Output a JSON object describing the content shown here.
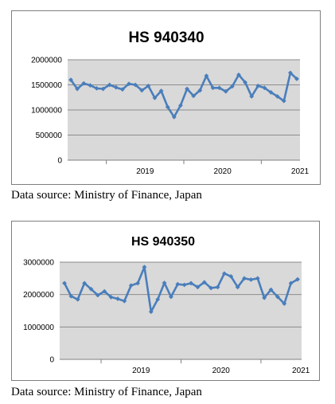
{
  "chart_data": [
    {
      "type": "line",
      "title": "HS 940340",
      "xlabel": "",
      "ylabel": "",
      "ylim": [
        0,
        2000000
      ],
      "yticks": [
        "2000000",
        "1500000",
        "1000000",
        "500000",
        "0"
      ],
      "xticks": [
        "2019",
        "2020",
        "2021"
      ],
      "grid": true,
      "line_color": "#4a7ebb",
      "plot_background": "#d9d9d9",
      "x_start": "2018-07",
      "x_end": "2021-12",
      "series": [
        {
          "values": [
            1600000,
            1420000,
            1530000,
            1490000,
            1430000,
            1420000,
            1500000,
            1450000,
            1410000,
            1520000,
            1500000,
            1390000,
            1480000,
            1240000,
            1380000,
            1060000,
            860000,
            1090000,
            1420000,
            1280000,
            1390000,
            1680000,
            1440000,
            1440000,
            1370000,
            1470000,
            1700000,
            1550000,
            1270000,
            1480000,
            1440000,
            1350000,
            1270000,
            1180000,
            1740000,
            1620000
          ]
        }
      ]
    },
    {
      "type": "line",
      "title": "HS 940350",
      "xlabel": "",
      "ylabel": "",
      "ylim": [
        0,
        3000000
      ],
      "yticks": [
        "3000000",
        "2000000",
        "1000000",
        "0"
      ],
      "xticks": [
        "2019",
        "2020",
        "2021"
      ],
      "grid": true,
      "line_color": "#4a7ebb",
      "plot_background": "#d9d9d9",
      "x_start": "2018-07",
      "x_end": "2021-12",
      "series": [
        {
          "values": [
            2350000,
            1950000,
            1850000,
            2350000,
            2170000,
            1980000,
            2100000,
            1920000,
            1870000,
            1800000,
            2280000,
            2350000,
            2850000,
            1470000,
            1850000,
            2360000,
            1930000,
            2320000,
            2300000,
            2350000,
            2230000,
            2380000,
            2200000,
            2230000,
            2650000,
            2560000,
            2230000,
            2500000,
            2460000,
            2500000,
            1900000,
            2150000,
            1930000,
            1720000,
            2350000,
            2470000
          ]
        }
      ]
    }
  ],
  "captions": [
    "Data source: Ministry of Finance, Japan",
    "Data source: Ministry of Finance, Japan"
  ]
}
